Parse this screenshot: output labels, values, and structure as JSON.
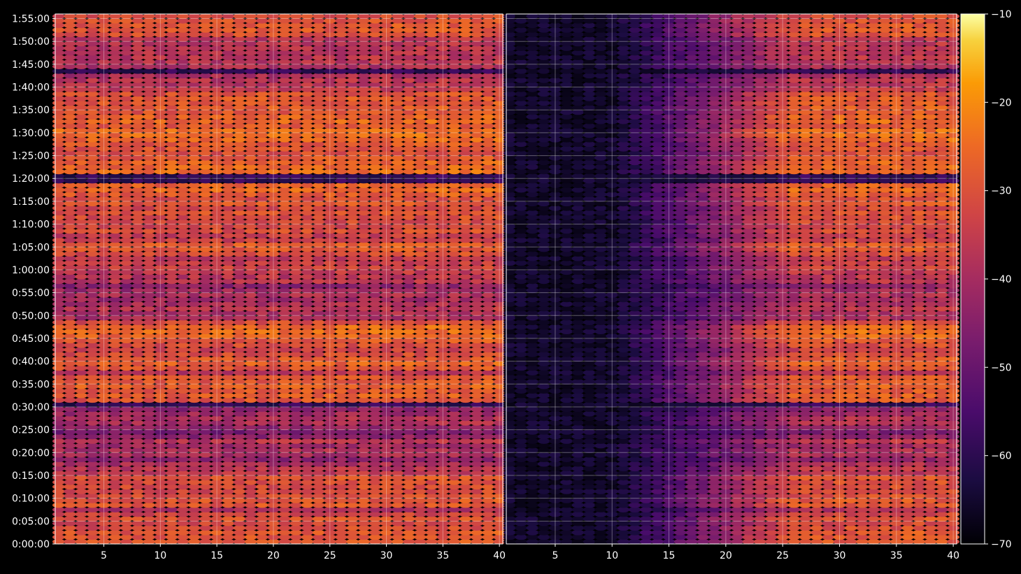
{
  "chart_data": {
    "type": "heatmap",
    "title": "",
    "panels": [
      {
        "name": "",
        "x_ticks": [
          5,
          10,
          15,
          20,
          25,
          30,
          35,
          40
        ],
        "xlim": [
          1,
          40
        ]
      },
      {
        "name": "",
        "x_ticks": [
          5,
          10,
          15,
          20,
          25,
          30,
          35,
          40
        ],
        "xlim": [
          1,
          40
        ]
      }
    ],
    "y_ticks": [
      "0:00:00",
      "0:05:00",
      "0:10:00",
      "0:15:00",
      "0:20:00",
      "0:25:00",
      "0:30:00",
      "0:35:00",
      "0:40:00",
      "0:45:00",
      "0:50:00",
      "0:55:00",
      "1:00:00",
      "1:05:00",
      "1:10:00",
      "1:15:00",
      "1:20:00",
      "1:25:00",
      "1:30:00",
      "1:35:00",
      "1:40:00",
      "1:45:00",
      "1:50:00",
      "1:55:00"
    ],
    "ylim_minutes": [
      0,
      116
    ],
    "colorbar": {
      "colormap": "inferno",
      "range": [
        -70,
        -10
      ],
      "ticks": [
        -10,
        -20,
        -30,
        -40,
        -50,
        -60,
        -70
      ],
      "tick_labels": [
        "−10",
        "−20",
        "−30",
        "−40",
        "−50",
        "−60",
        "−70"
      ]
    },
    "row_intensity": {
      "description_minutes_start": 0,
      "step_minutes": 1,
      "values": [
        -30,
        -30,
        -30,
        -32,
        -33,
        -31,
        -34,
        -40,
        -30,
        -30,
        -32,
        -33,
        -32,
        -32,
        -31,
        -37,
        -38,
        -40,
        -45,
        -40,
        -40,
        -42,
        -38,
        -45,
        -48,
        -44,
        -40,
        -40,
        -42,
        -45,
        -60,
        -30,
        -29,
        -30,
        -28,
        -30,
        -30,
        -38,
        -30,
        -28,
        -30,
        -32,
        -35,
        -32,
        -30,
        -27,
        -26,
        -27,
        -32,
        -40,
        -40,
        -38,
        -40,
        -42,
        -40,
        -42,
        -45,
        -38,
        -38,
        -37,
        -35,
        -36,
        -37,
        -32,
        -30,
        -29,
        -35,
        -36,
        -32,
        -34,
        -33,
        -32,
        -31,
        -33,
        -30,
        -32,
        -29,
        -27,
        -28,
        -60,
        -60,
        -26,
        -27,
        -28,
        -30,
        -32,
        -31,
        -30,
        -27,
        -26,
        -26,
        -30,
        -27,
        -28,
        -30,
        -29,
        -30,
        -30,
        -31,
        -36,
        -38,
        -38,
        -40,
        -60,
        -40,
        -38,
        -38,
        -38,
        -38,
        -38,
        -38,
        -31,
        -30,
        -30,
        -31,
        -32
      ],
      "x_profile_left": "uniform with slight increase toward x=40",
      "x_profile_right": "very low (-65) for x=1..10, rising to match left panel by x≈25"
    },
    "grid": true
  }
}
